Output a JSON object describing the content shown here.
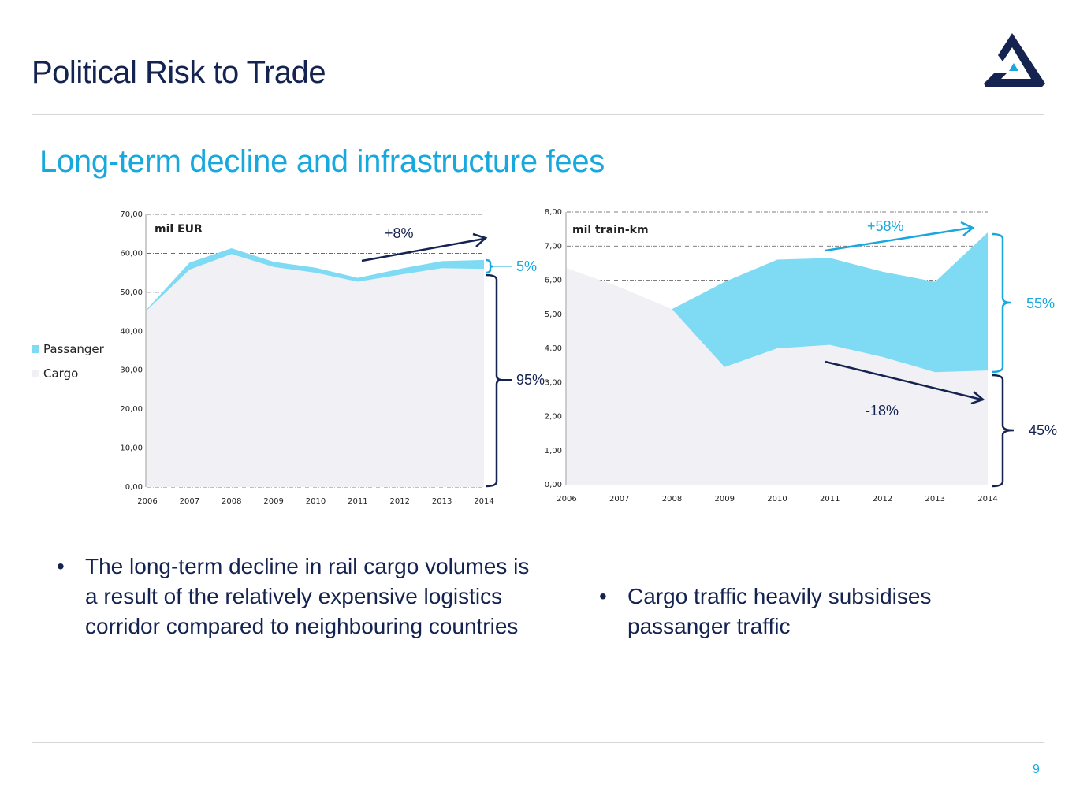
{
  "header": {
    "title": "Political Risk to Trade"
  },
  "section": {
    "subtitle": "Long-term decline and infrastructure fees"
  },
  "bullets": {
    "left": "The long-term decline in rail cargo volumes is a result of the relatively expensive logistics corridor compared to neighbouring countries",
    "right": "Cargo traffic heavily subsidises passanger traffic"
  },
  "footer": {
    "page_number": "9"
  },
  "colors": {
    "navy": "#14234f",
    "accent": "#17a8dd",
    "passanger": "#7fdaf4",
    "cargo": "#f0f0f5"
  },
  "chart_data": [
    {
      "type": "area",
      "stacked": true,
      "unit_label": "mil EUR",
      "x": [
        "2006",
        "2007",
        "2008",
        "2009",
        "2010",
        "2011",
        "2012",
        "2013",
        "2014"
      ],
      "ylim": [
        0,
        70
      ],
      "yticks": [
        "0,00",
        "10,00",
        "20,00",
        "30,00",
        "40,00",
        "50,00",
        "60,00",
        "70,00"
      ],
      "grid": true,
      "legend": [
        "Passanger",
        "Cargo"
      ],
      "series": [
        {
          "name": "Cargo",
          "values": [
            45.5,
            55.8,
            59.8,
            56.5,
            55.0,
            52.7,
            54.5,
            56.2,
            56.0
          ]
        },
        {
          "name": "Passanger",
          "values": [
            0.3,
            1.8,
            1.5,
            1.3,
            1.3,
            1.0,
            1.5,
            1.8,
            2.3
          ]
        }
      ],
      "annotations": {
        "trend": "+8%",
        "passanger_share": "5%",
        "cargo_share": "95%"
      }
    },
    {
      "type": "area",
      "stacked": true,
      "unit_label": "mil train-km",
      "x": [
        "2006",
        "2007",
        "2008",
        "2009",
        "2010",
        "2011",
        "2012",
        "2013",
        "2014"
      ],
      "ylim": [
        0,
        8
      ],
      "yticks": [
        "0,00",
        "1,00",
        "2,00",
        "3,00",
        "4,00",
        "5,00",
        "6,00",
        "7,00",
        "8,00"
      ],
      "grid": true,
      "series": [
        {
          "name": "Cargo",
          "values": [
            6.35,
            5.8,
            5.15,
            3.45,
            4.0,
            4.1,
            3.75,
            3.3,
            3.35
          ]
        },
        {
          "name": "Passanger",
          "values": [
            0,
            0,
            0,
            2.5,
            2.6,
            2.55,
            2.5,
            2.65,
            4.05
          ]
        }
      ],
      "annotations": {
        "passanger_trend": "+58%",
        "cargo_trend": "-18%",
        "passanger_share": "55%",
        "cargo_share": "45%"
      }
    }
  ]
}
